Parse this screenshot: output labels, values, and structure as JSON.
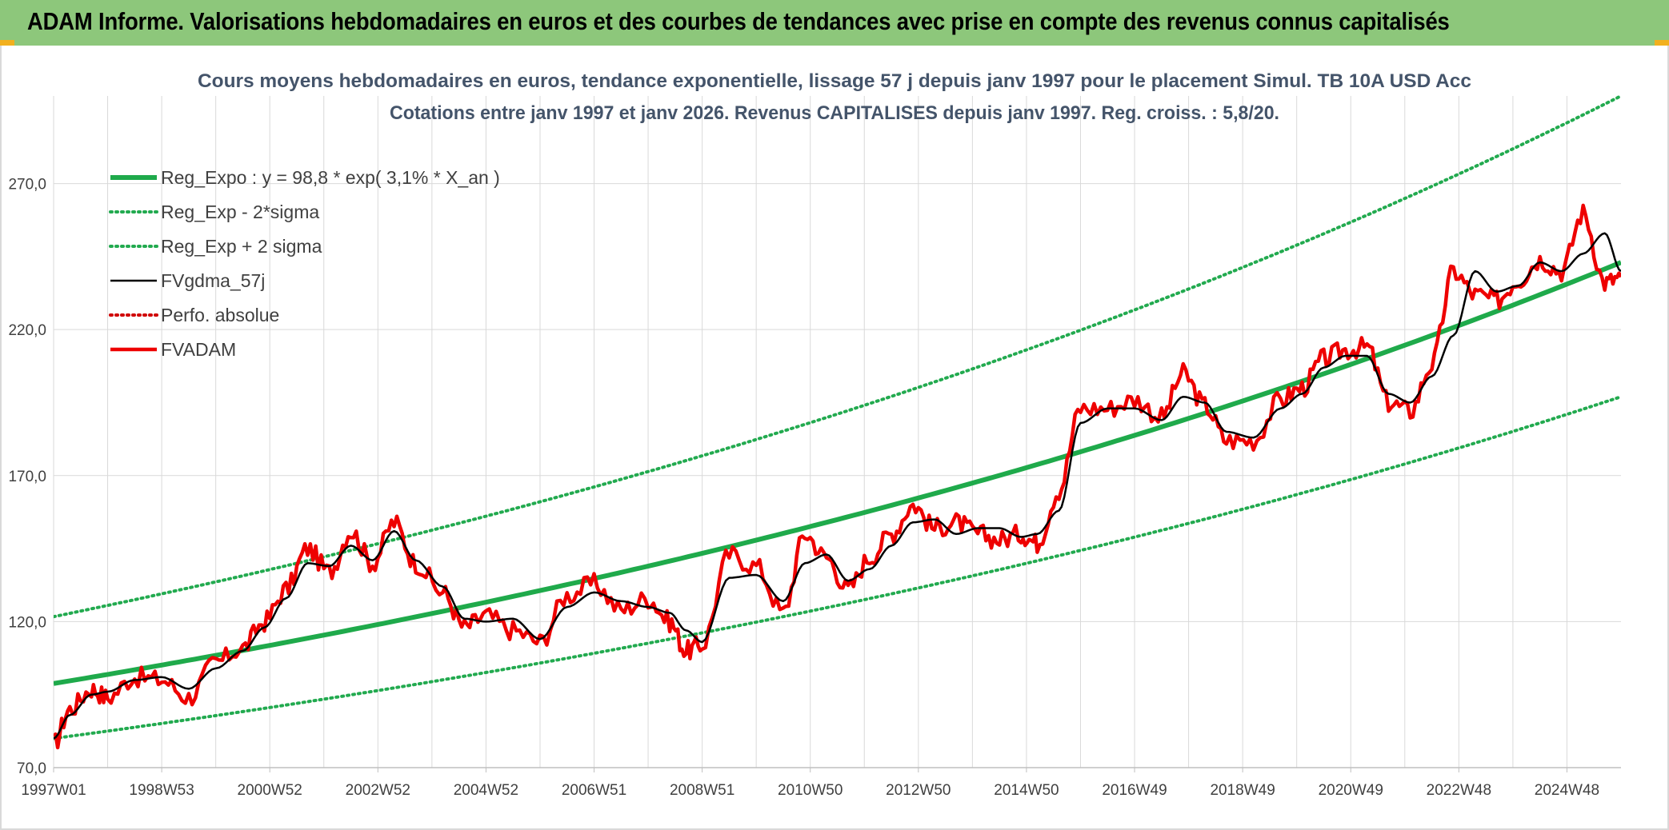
{
  "banner": {
    "title": "ADAM Informe. Valorisations hebdomadaires en euros et des courbes de tendances avec prise en compte des revenus connus capitalisés"
  },
  "colors": {
    "banner_bg": "#8dc77b",
    "corner_accent": "#f2b01e",
    "reg_expo": "#1faa4b",
    "reg_sigma": "#22aa4f",
    "fvgdma": "#000000",
    "perfo": "#d00000",
    "fvadam": "#ee0000",
    "title_text": "#44546a",
    "grid": "#d9d9d9"
  },
  "chart_data": {
    "type": "line",
    "title": [
      "Cours moyens hebdomadaires en euros, tendance exponentielle, lissage 57 j depuis janv 1997 pour le placement Simul. TB 10A USD Acc",
      "Cotations entre janv 1997 et janv 2026. Revenus CAPITALISES depuis janv 1997. Reg. croiss. : 5,8/20."
    ],
    "xlabel": "",
    "ylabel": "",
    "ylim": [
      70,
      300
    ],
    "xlim": [
      1997.0,
      2026.0
    ],
    "y_ticks": [
      {
        "value": 70,
        "label": "70,0"
      },
      {
        "value": 120,
        "label": "120,0"
      },
      {
        "value": 170,
        "label": "170,0"
      },
      {
        "value": 220,
        "label": "220,0"
      },
      {
        "value": 270,
        "label": "270,0"
      }
    ],
    "x_ticks": [
      {
        "value": 1997.0,
        "label": "1997W01"
      },
      {
        "value": 1999.0,
        "label": "1998W53"
      },
      {
        "value": 2001.0,
        "label": "2000W52"
      },
      {
        "value": 2003.0,
        "label": "2002W52"
      },
      {
        "value": 2005.0,
        "label": "2004W52"
      },
      {
        "value": 2007.0,
        "label": "2006W51"
      },
      {
        "value": 2009.0,
        "label": "2008W51"
      },
      {
        "value": 2011.0,
        "label": "2010W50"
      },
      {
        "value": 2013.0,
        "label": "2012W50"
      },
      {
        "value": 2015.0,
        "label": "2014W50"
      },
      {
        "value": 2017.0,
        "label": "2016W49"
      },
      {
        "value": 2019.0,
        "label": "2018W49"
      },
      {
        "value": 2021.0,
        "label": "2020W49"
      },
      {
        "value": 2023.0,
        "label": "2022W48"
      },
      {
        "value": 2025.0,
        "label": "2024W48"
      }
    ],
    "grid": true,
    "legend_position": "top-left",
    "series": [
      {
        "name": "Reg_Expo : y = 98,8 * exp( 3,1% *  X_an )",
        "key": "reg_expo",
        "style": "solid-thick",
        "x": [
          1997,
          2000,
          2003,
          2006,
          2009,
          2012,
          2015,
          2018,
          2021,
          2024,
          2026
        ],
        "values": [
          98.8,
          108.5,
          119.0,
          130.6,
          143.4,
          157.3,
          172.7,
          189.5,
          208.0,
          228.3,
          243.0
        ]
      },
      {
        "name": "Reg_Exp - 2*sigma",
        "key": "reg_sigma",
        "style": "dotted",
        "x": [
          1997,
          2000,
          2003,
          2006,
          2009,
          2012,
          2015,
          2018,
          2021,
          2024,
          2026
        ],
        "values": [
          80.0,
          87.9,
          96.4,
          105.8,
          116.2,
          127.4,
          140.0,
          153.6,
          168.5,
          185.0,
          197.0
        ]
      },
      {
        "name": "Reg_Exp + 2 sigma",
        "key": "reg_sigma",
        "style": "dotted",
        "x": [
          1997,
          2000,
          2003,
          2006,
          2009,
          2012,
          2015,
          2018,
          2021,
          2024,
          2026
        ],
        "values": [
          121.7,
          133.6,
          146.6,
          160.9,
          176.6,
          193.8,
          212.7,
          233.5,
          256.2,
          281.2,
          300.0
        ]
      },
      {
        "name": "FVgdma_57j",
        "key": "fvgdma",
        "style": "solid",
        "x": [
          1997.0,
          1997.3,
          1997.7,
          1998.0,
          1998.5,
          1999.0,
          1999.5,
          2000.0,
          2000.5,
          2000.9,
          2001.3,
          2001.7,
          2002.1,
          2002.5,
          2002.9,
          2003.3,
          2003.7,
          2004.2,
          2004.6,
          2005.0,
          2005.5,
          2006.0,
          2006.5,
          2007.0,
          2007.5,
          2008.0,
          2008.4,
          2008.7,
          2009.0,
          2009.5,
          2010.0,
          2010.5,
          2010.9,
          2011.3,
          2011.7,
          2012.1,
          2012.5,
          2012.9,
          2013.3,
          2013.7,
          2014.1,
          2014.5,
          2014.9,
          2015.2,
          2015.6,
          2016.0,
          2016.5,
          2017.0,
          2017.5,
          2017.9,
          2018.3,
          2018.7,
          2019.2,
          2019.7,
          2020.1,
          2020.5,
          2020.9,
          2021.3,
          2021.7,
          2022.1,
          2022.5,
          2022.9,
          2023.3,
          2023.7,
          2024.1,
          2024.5,
          2024.9,
          2025.3,
          2025.7,
          2026.0
        ],
        "values": [
          80,
          88,
          95,
          96,
          100,
          101,
          97,
          104,
          110,
          118,
          128,
          140,
          139,
          146,
          141,
          151,
          141,
          132,
          121,
          120,
          121,
          114,
          125,
          130,
          127,
          125,
          123,
          117,
          113,
          135,
          136,
          127,
          140,
          143,
          134,
          138,
          146,
          154,
          155,
          150,
          152,
          152,
          149,
          150,
          158,
          188,
          193,
          193,
          189,
          197,
          195,
          185,
          183,
          193,
          198,
          207,
          211,
          211,
          198,
          195,
          204,
          218,
          240,
          233,
          235,
          243,
          240,
          246,
          253,
          240
        ]
      },
      {
        "name": "Perfo. absolue",
        "key": "perfo",
        "style": "dotted",
        "x": [],
        "values": []
      },
      {
        "name": "FVADAM",
        "key": "fvadam",
        "style": "solid-thick",
        "x": [
          1997.0,
          1997.3,
          1997.7,
          1998.0,
          1998.5,
          1999.0,
          1999.5,
          2000.0,
          2000.5,
          2000.9,
          2001.3,
          2001.7,
          2002.1,
          2002.5,
          2002.9,
          2003.3,
          2003.7,
          2004.2,
          2004.6,
          2005.0,
          2005.5,
          2006.0,
          2006.5,
          2007.0,
          2007.5,
          2008.0,
          2008.4,
          2008.7,
          2009.0,
          2009.5,
          2010.0,
          2010.5,
          2010.9,
          2011.3,
          2011.7,
          2012.1,
          2012.5,
          2012.9,
          2013.3,
          2013.7,
          2014.1,
          2014.5,
          2014.9,
          2015.2,
          2015.6,
          2016.0,
          2016.5,
          2017.0,
          2017.5,
          2017.9,
          2018.3,
          2018.7,
          2019.2,
          2019.7,
          2020.1,
          2020.5,
          2020.9,
          2021.3,
          2021.7,
          2022.1,
          2022.5,
          2022.9,
          2023.3,
          2023.7,
          2024.1,
          2024.5,
          2024.9,
          2025.3,
          2025.7,
          2026.0
        ],
        "values": [
          78,
          90,
          97,
          94,
          101,
          100,
          94,
          106,
          111,
          120,
          131,
          145,
          137,
          151,
          140,
          154,
          140,
          130,
          118,
          122,
          117,
          113,
          129,
          133,
          124,
          128,
          120,
          110,
          112,
          143,
          139,
          123,
          150,
          142,
          131,
          142,
          150,
          160,
          152,
          154,
          150,
          148,
          150,
          147,
          165,
          193,
          193,
          196,
          190,
          205,
          194,
          182,
          182,
          196,
          200,
          210,
          213,
          214,
          195,
          192,
          208,
          240,
          232,
          230,
          237,
          244,
          240,
          260,
          236,
          238
        ]
      }
    ]
  }
}
